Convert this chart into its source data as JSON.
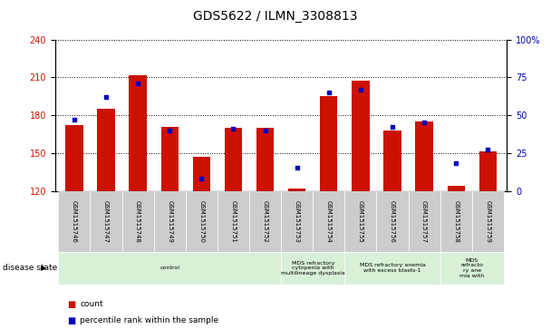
{
  "title": "GDS5622 / ILMN_3308813",
  "samples": [
    "GSM1515746",
    "GSM1515747",
    "GSM1515748",
    "GSM1515749",
    "GSM1515750",
    "GSM1515751",
    "GSM1515752",
    "GSM1515753",
    "GSM1515754",
    "GSM1515755",
    "GSM1515756",
    "GSM1515757",
    "GSM1515758",
    "GSM1515759"
  ],
  "count_values": [
    172,
    185,
    212,
    171,
    147,
    170,
    170,
    122,
    195,
    207,
    168,
    175,
    124,
    151
  ],
  "percentile_values": [
    47,
    62,
    71,
    40,
    8,
    41,
    40,
    15,
    65,
    67,
    42,
    45,
    18,
    27
  ],
  "ylim_left": [
    120,
    240
  ],
  "ylim_right": [
    0,
    100
  ],
  "yticks_left": [
    120,
    150,
    180,
    210,
    240
  ],
  "yticks_right": [
    0,
    25,
    50,
    75,
    100
  ],
  "bar_color": "#cc1100",
  "dot_color": "#0000bb",
  "bar_bottom": 120,
  "disease_groups": [
    {
      "label": "control",
      "start": 0,
      "end": 6,
      "color": "#d8f0d8"
    },
    {
      "label": "MDS refractory\ncytopenia with\nmultilineage dysplasia",
      "start": 7,
      "end": 8,
      "color": "#d8f0d8"
    },
    {
      "label": "MDS refractory anemia\nwith excess blasts-1",
      "start": 9,
      "end": 11,
      "color": "#d8f0d8"
    },
    {
      "label": "MDS\nrefracto\nry ane\nmia with",
      "start": 12,
      "end": 13,
      "color": "#d8f0d8"
    }
  ],
  "disease_state_label": "disease state",
  "legend_count": "count",
  "legend_percentile": "percentile rank within the sample",
  "background_color": "#ffffff",
  "tick_label_color_left": "#cc1100",
  "tick_label_color_right": "#0000bb",
  "title_fontsize": 10,
  "bar_width": 0.55,
  "sample_label_bg": "#cccccc"
}
